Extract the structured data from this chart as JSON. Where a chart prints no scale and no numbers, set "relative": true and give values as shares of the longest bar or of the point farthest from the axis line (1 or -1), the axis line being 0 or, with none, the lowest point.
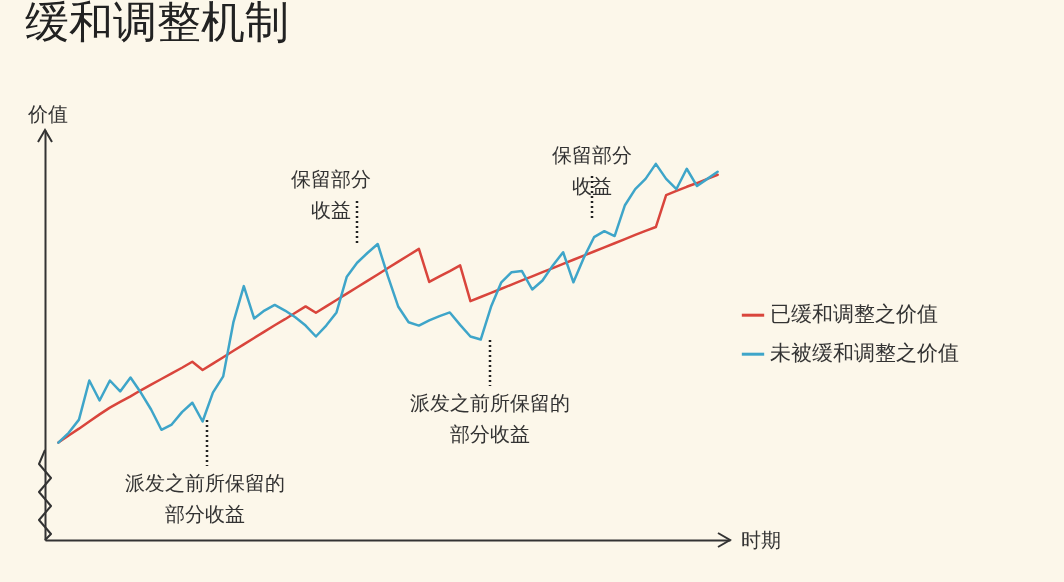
{
  "chart_data": {
    "type": "line",
    "title": "缓和调整机制",
    "xlabel": "时期",
    "ylabel": "价值",
    "relative": true,
    "legend": "right",
    "line_style": "solid",
    "categories": [
      null,
      null,
      null,
      null,
      null,
      null,
      null,
      null,
      null,
      null,
      null,
      null,
      null,
      null,
      null,
      null,
      null,
      null,
      null,
      null,
      null,
      null,
      null,
      null,
      null,
      null,
      null,
      null,
      null,
      null,
      null,
      null,
      null,
      null,
      null,
      null,
      null,
      null,
      null,
      null,
      null,
      null,
      null,
      null,
      null,
      null,
      null,
      null,
      null,
      null,
      null,
      null,
      null,
      null,
      null,
      null,
      null,
      null,
      null,
      null,
      null,
      null,
      null,
      null,
      null
    ],
    "series": [
      {
        "name": "已缓和调整之价值",
        "color": "#d9453c",
        "values": [
          0.259,
          0.278,
          0.296,
          0.315,
          0.334,
          0.352,
          0.367,
          0.382,
          0.398,
          0.413,
          0.428,
          0.443,
          0.458,
          0.474,
          0.452,
          0.469,
          0.486,
          0.503,
          0.52,
          0.537,
          0.554,
          0.571,
          0.587,
          0.604,
          0.621,
          0.604,
          0.621,
          0.638,
          0.655,
          0.672,
          0.689,
          0.706,
          0.723,
          0.74,
          0.757,
          0.774,
          0.686,
          0.701,
          0.715,
          0.73,
          0.635,
          0.646,
          0.657,
          0.668,
          0.679,
          0.69,
          0.701,
          0.712,
          0.723,
          0.734,
          0.745,
          0.756,
          0.767,
          0.778,
          0.789,
          0.8,
          0.811,
          0.822,
          0.832,
          0.917,
          0.928,
          0.939,
          0.949,
          0.96,
          0.971
        ]
      },
      {
        "name": "未被缓和调整之价值",
        "color": "#3ea5c9",
        "values": [
          0.259,
          0.285,
          0.32,
          0.424,
          0.371,
          0.424,
          0.395,
          0.432,
          0.392,
          0.347,
          0.293,
          0.307,
          0.34,
          0.365,
          0.315,
          0.392,
          0.435,
          0.58,
          0.675,
          0.589,
          0.61,
          0.625,
          0.61,
          0.592,
          0.57,
          0.541,
          0.57,
          0.605,
          0.7,
          0.737,
          0.763,
          0.787,
          0.7,
          0.62,
          0.579,
          0.57,
          0.584,
          0.595,
          0.605,
          0.572,
          0.541,
          0.533,
          0.62,
          0.685,
          0.712,
          0.715,
          0.666,
          0.69,
          0.73,
          0.765,
          0.685,
          0.75,
          0.805,
          0.821,
          0.808,
          0.89,
          0.933,
          0.96,
          1,
          0.96,
          0.933,
          0.987,
          0.941,
          0.96,
          0.979
        ]
      }
    ],
    "annotations": [
      "派发之前所保留的部分收益",
      "保留部分收益",
      "派发之前所保留的部分收益",
      "保留部分收益"
    ]
  }
}
